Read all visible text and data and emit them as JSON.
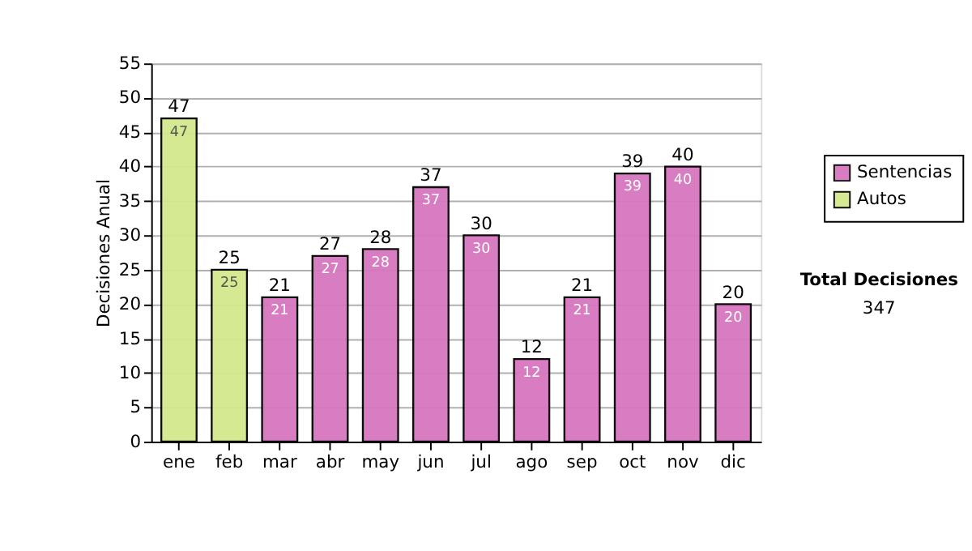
{
  "chart_data": {
    "type": "bar",
    "stacked": true,
    "ylabel": "Decisiones Anual",
    "categories": [
      "ene",
      "feb",
      "mar",
      "abr",
      "may",
      "jun",
      "jul",
      "ago",
      "sep",
      "oct",
      "nov",
      "dic"
    ],
    "series": [
      {
        "name": "Sentencias",
        "color": "#d677bf",
        "values": [
          null,
          null,
          21,
          27,
          28,
          37,
          30,
          12,
          21,
          39,
          40,
          20
        ]
      },
      {
        "name": "Autos",
        "color": "#d2e88c",
        "values": [
          47,
          25,
          null,
          null,
          null,
          null,
          null,
          null,
          null,
          null,
          null,
          null
        ]
      }
    ],
    "totals": [
      "47",
      "25",
      "21",
      "27",
      "28",
      "37",
      "30",
      "12",
      "21",
      "39",
      "40",
      "20"
    ],
    "data_labels": true,
    "ylim": [
      0,
      55
    ],
    "yticks": [
      0,
      5,
      10,
      15,
      20,
      25,
      30,
      35,
      40,
      45,
      50,
      55
    ],
    "grid": "y",
    "legend": "right",
    "annotations": [
      "Total Decisiones",
      "347"
    ]
  }
}
